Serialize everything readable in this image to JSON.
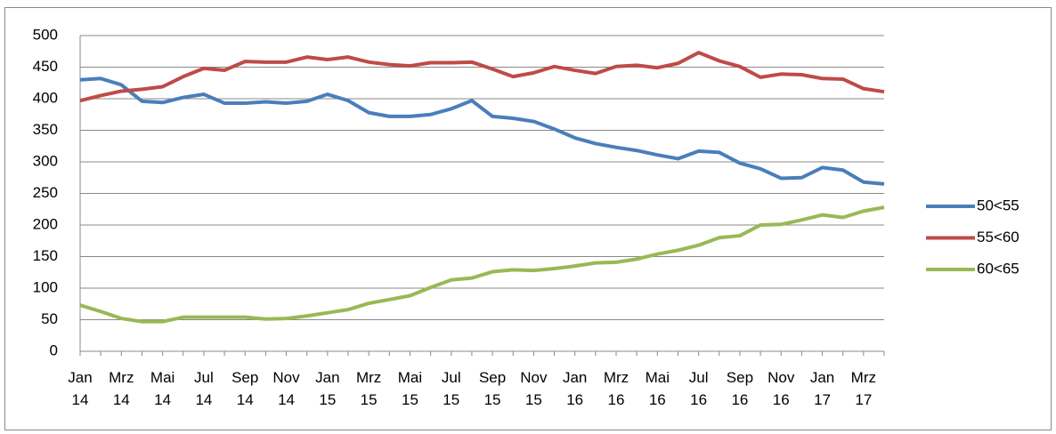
{
  "chart_data": {
    "type": "line",
    "categories": [
      "Jan 14",
      null,
      "Mrz 14",
      null,
      "Mai 14",
      null,
      "Jul 14",
      null,
      "Sep 14",
      null,
      "Nov 14",
      null,
      "Jan 15",
      null,
      "Mrz 15",
      null,
      "Mai 15",
      null,
      "Jul 15",
      null,
      "Sep 15",
      null,
      "Nov 15",
      null,
      "Jan 16",
      null,
      "Mrz 16",
      null,
      "Mai 16",
      null,
      "Jul 16",
      null,
      "Sep 16",
      null,
      "Nov 16",
      null,
      "Jan 17",
      null,
      "Mrz 17",
      null
    ],
    "series": [
      {
        "name": "50<55",
        "color": "#4a7ebb",
        "values": [
          430,
          432,
          422,
          396,
          394,
          402,
          407,
          393,
          393,
          395,
          393,
          396,
          407,
          397,
          378,
          372,
          372,
          375,
          384,
          397,
          372,
          369,
          364,
          352,
          338,
          329,
          323,
          318,
          311,
          305,
          317,
          315,
          298,
          289,
          274,
          275,
          291,
          287,
          268,
          265
        ]
      },
      {
        "name": "55<60",
        "color": "#be4b48",
        "values": [
          397,
          405,
          412,
          415,
          419,
          435,
          448,
          445,
          459,
          458,
          458,
          466,
          462,
          466,
          458,
          454,
          452,
          457,
          457,
          458,
          447,
          435,
          441,
          451,
          445,
          440,
          451,
          453,
          449,
          456,
          473,
          460,
          451,
          434,
          439,
          438,
          432,
          431,
          416,
          411
        ]
      },
      {
        "name": "60<65",
        "color": "#98b954",
        "values": [
          73,
          63,
          52,
          47,
          47,
          54,
          54,
          54,
          54,
          51,
          52,
          56,
          61,
          66,
          76,
          82,
          88,
          101,
          113,
          116,
          126,
          129,
          128,
          131,
          135,
          140,
          141,
          146,
          154,
          160,
          168,
          180,
          183,
          200,
          201,
          208,
          216,
          212,
          222,
          228
        ]
      }
    ],
    "ylim": [
      0,
      500
    ],
    "yticks": [
      0,
      50,
      100,
      150,
      200,
      250,
      300,
      350,
      400,
      450,
      500
    ],
    "grid": true,
    "legend": "right"
  }
}
